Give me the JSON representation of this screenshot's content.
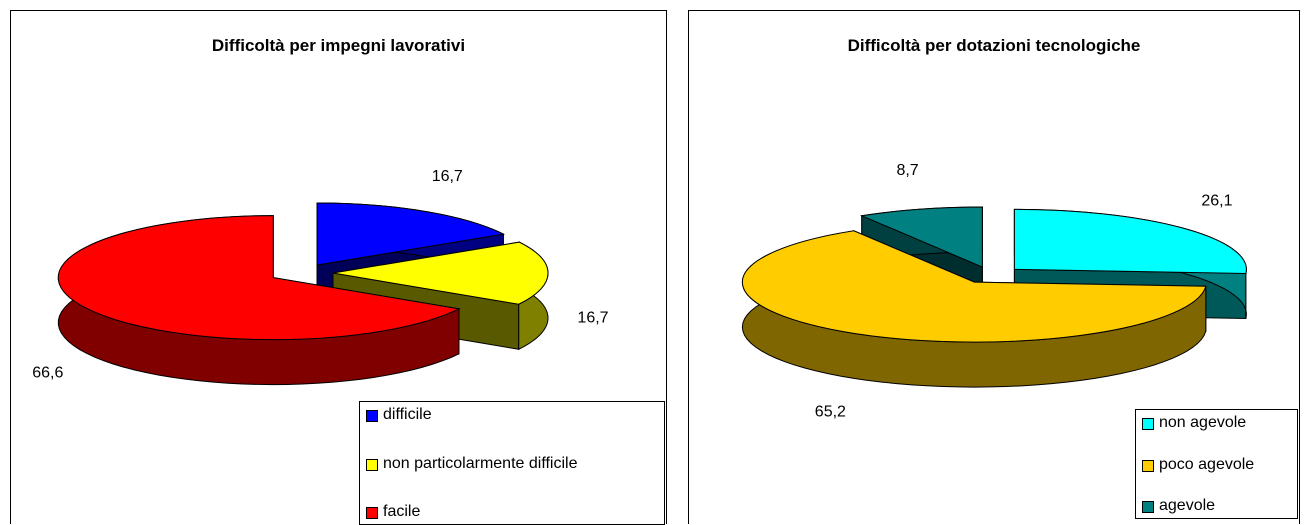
{
  "chart_data": [
    {
      "type": "pie",
      "title": "Difficoltà per impegni lavorativi",
      "categories": [
        "difficile",
        "non particolarmente difficile",
        "facile"
      ],
      "values": [
        16.7,
        16.7,
        66.6
      ],
      "value_labels": [
        "16,7",
        "16,7",
        "66,6"
      ],
      "colors": [
        "#0000ff",
        "#ffff00",
        "#ff0000"
      ],
      "legend": "bottom-right"
    },
    {
      "type": "pie",
      "title": "Difficoltà per dotazioni tecnologiche",
      "categories": [
        "non agevole",
        "poco agevole",
        "agevole"
      ],
      "values": [
        26.1,
        65.2,
        8.7
      ],
      "value_labels": [
        "26,1",
        "65,2",
        "8,7"
      ],
      "colors": [
        "#00ffff",
        "#ffcc00",
        "#008080"
      ],
      "legend": "bottom-right"
    }
  ]
}
